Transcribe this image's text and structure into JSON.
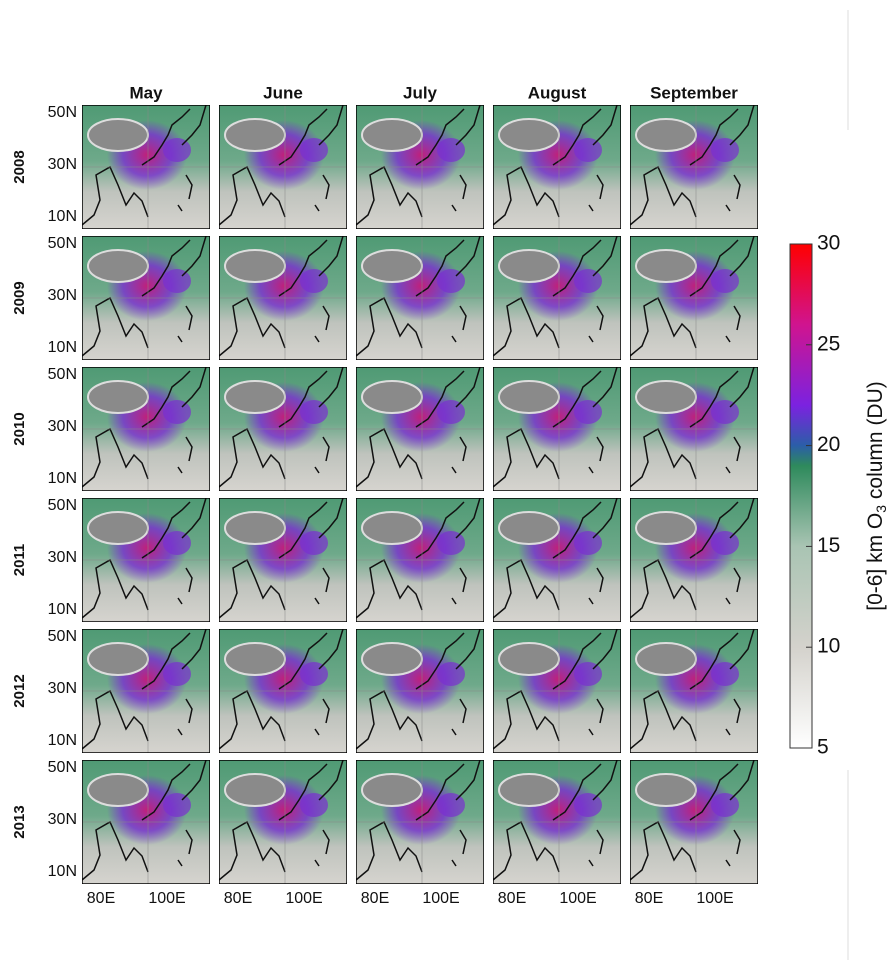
{
  "columns": [
    "May",
    "June",
    "July",
    "August",
    "September"
  ],
  "rows": [
    "2008",
    "2009",
    "2010",
    "2011",
    "2012",
    "2013"
  ],
  "latitude_labels": [
    "50N",
    "30N",
    "10N"
  ],
  "longitude_labels": [
    "80E",
    "100E"
  ],
  "colorbar": {
    "label_start": "[0-6] km O",
    "label_sub": "3",
    "label_end": " column (DU)",
    "lim": [
      5,
      30
    ],
    "ticks": [
      5,
      10,
      15,
      20,
      25,
      30
    ]
  }
}
